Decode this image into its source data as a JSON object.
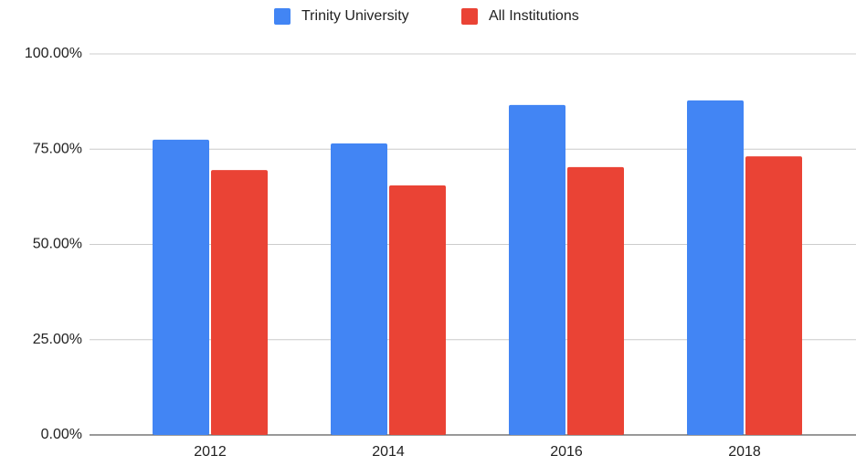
{
  "chart_data": {
    "type": "bar",
    "categories": [
      "2012",
      "2014",
      "2016",
      "2018"
    ],
    "series": [
      {
        "name": "Trinity University",
        "color": "#4285f4",
        "values": [
          77.5,
          76.5,
          86.6,
          87.8
        ]
      },
      {
        "name": "All Institutions",
        "color": "#ea4335",
        "values": [
          69.5,
          65.5,
          70.3,
          73.1
        ]
      }
    ],
    "ylim": [
      0,
      100
    ],
    "yticks": [
      {
        "value": 0,
        "label": "0.00%"
      },
      {
        "value": 25,
        "label": "25.00%"
      },
      {
        "value": 50,
        "label": "50.00%"
      },
      {
        "value": 75,
        "label": "75.00%"
      },
      {
        "value": 100,
        "label": "100.00%"
      }
    ],
    "grid": true,
    "legend": "top"
  }
}
